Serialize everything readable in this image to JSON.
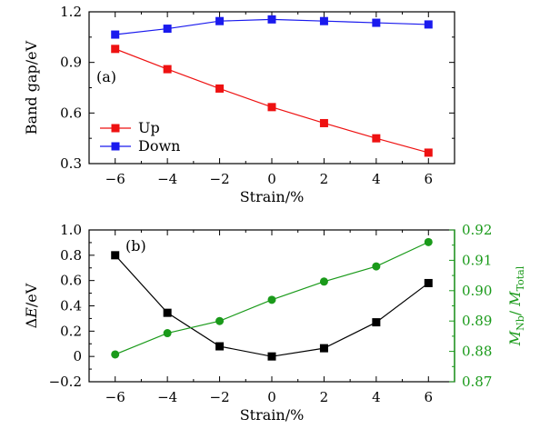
{
  "chart_data": [
    {
      "type": "line",
      "panel_label": "(a)",
      "xlabel": "Strain/%",
      "ylabel": "Band gap/eV",
      "x": [
        -6,
        -4,
        -2,
        0,
        2,
        4,
        6
      ],
      "xticks": [
        "−6",
        "−4",
        "−2",
        "0",
        "2",
        "4",
        "6"
      ],
      "xlim": [
        -7,
        7
      ],
      "ylim": [
        0.3,
        1.2
      ],
      "yticks": [
        "0.3",
        "0.6",
        "0.9",
        "1.2"
      ],
      "ytick_values": [
        0.3,
        0.6,
        0.9,
        1.2
      ],
      "legend_position": "bottom-left",
      "series": [
        {
          "name": "Up",
          "color": "#ee1111",
          "marker": "square",
          "values": [
            0.98,
            0.86,
            0.745,
            0.635,
            0.54,
            0.45,
            0.365
          ]
        },
        {
          "name": "Down",
          "color": "#1a1aee",
          "marker": "square",
          "values": [
            1.065,
            1.1,
            1.145,
            1.155,
            1.145,
            1.135,
            1.125
          ]
        }
      ]
    },
    {
      "type": "line",
      "panel_label": "(b)",
      "xlabel": "Strain/%",
      "ylabel": "ΔE/eV",
      "ylabel_right": "M_Nb / M_Total",
      "x": [
        -6,
        -4,
        -2,
        0,
        2,
        4,
        6
      ],
      "xticks": [
        "−6",
        "−4",
        "−2",
        "0",
        "2",
        "4",
        "6"
      ],
      "xlim": [
        -7,
        7
      ],
      "ylim": [
        -0.2,
        1.0
      ],
      "yticks": [
        "−0.2",
        "0",
        "0.2",
        "0.4",
        "0.6",
        "0.8",
        "1.0"
      ],
      "ytick_values": [
        -0.2,
        0,
        0.2,
        0.4,
        0.6,
        0.8,
        1.0
      ],
      "ylim_right": [
        0.87,
        0.92
      ],
      "yticks_right": [
        "0.87",
        "0.88",
        "0.89",
        "0.90",
        "0.91",
        "0.92"
      ],
      "ytick_values_right": [
        0.87,
        0.88,
        0.89,
        0.9,
        0.91,
        0.92
      ],
      "series": [
        {
          "color": "#000000",
          "marker": "square",
          "axis": "left",
          "values": [
            0.8,
            0.345,
            0.08,
            0.0,
            0.065,
            0.27,
            0.58
          ]
        },
        {
          "color": "#1a9a1a",
          "marker": "circle",
          "axis": "right",
          "values": [
            0.879,
            0.886,
            0.89,
            0.897,
            0.903,
            0.908,
            0.916
          ]
        }
      ]
    }
  ]
}
